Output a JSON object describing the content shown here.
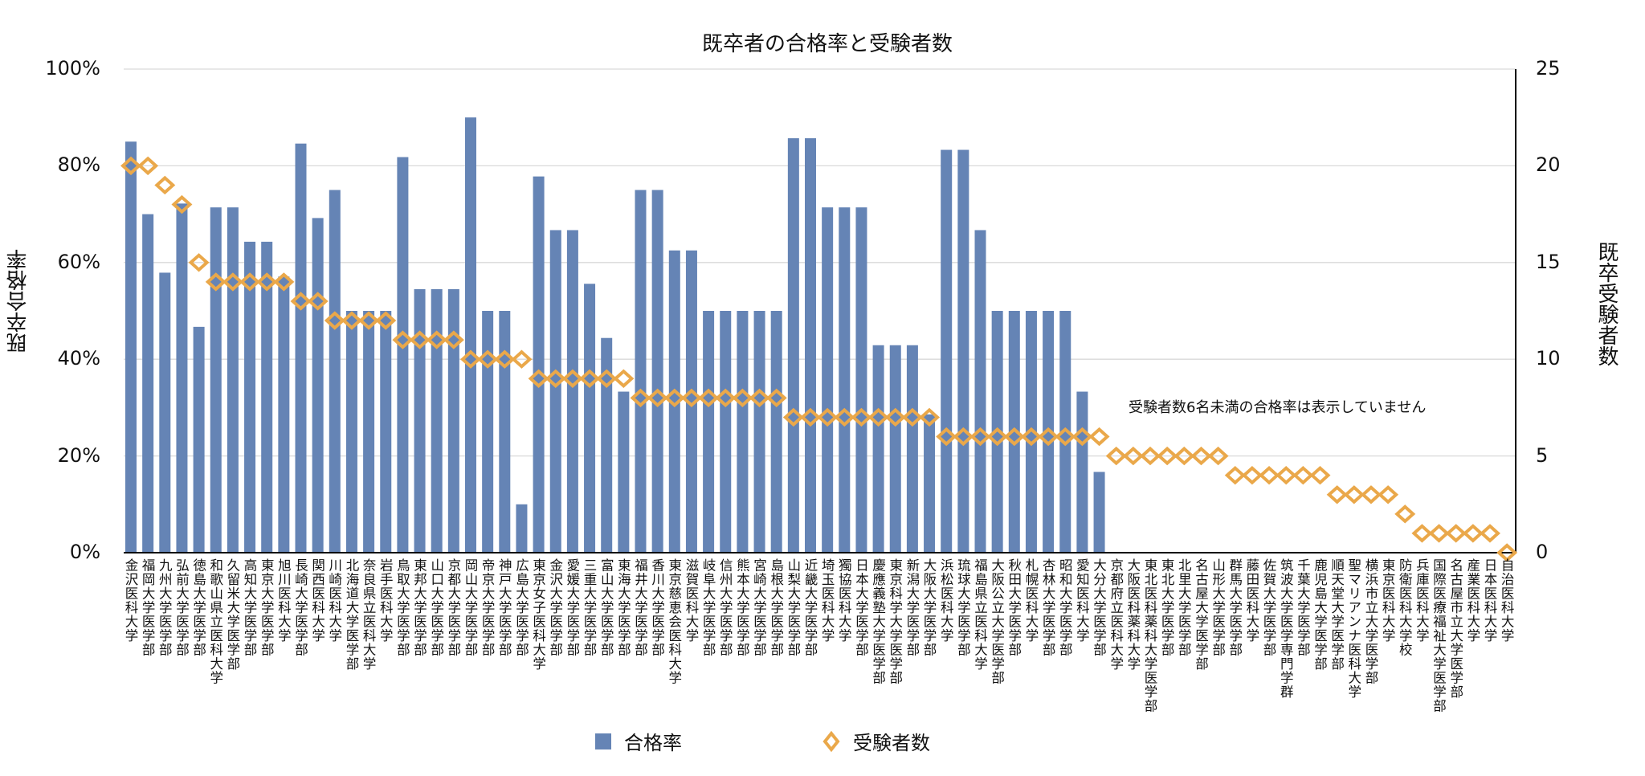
{
  "chart_data": {
    "type": "bar+scatter",
    "title": "既卒者の合格率と受験者数",
    "ylabel_left": "既卒合格率",
    "ylabel_right": "既卒受験者数",
    "ylim_left": [
      0,
      100
    ],
    "ylim_right": [
      0,
      25
    ],
    "yticks_left": [
      "0%",
      "20%",
      "40%",
      "60%",
      "80%",
      "100%"
    ],
    "yticks_right": [
      "0",
      "5",
      "10",
      "15",
      "20",
      "25"
    ],
    "grid": true,
    "legend_position": "bottom",
    "annotation": "受験者数6名未満の合格率は表示していません",
    "colors": {
      "bar": "#6584b5",
      "marker": "#eaa84a"
    },
    "categories": [
      "金沢医科大学",
      "福岡大学医学部",
      "九州大学医学部",
      "弘前大学医学部",
      "徳島大学医学部",
      "和歌山県立医科大学",
      "久留米大学医学部",
      "高知大学医学部",
      "東京大学医学部",
      "旭川医科大学",
      "長崎大学医学部",
      "関西医科大学",
      "川崎医科大学",
      "北海道大学医学部",
      "奈良県立医科大学",
      "岩手医科大学",
      "鳥取大学医学部",
      "東邦大学医学部",
      "山口大学医学部",
      "京都大学医学部",
      "岡山大学医学部",
      "帝京大学医学部",
      "神戸大学医学部",
      "広島大学医学部",
      "東京女子医科大学",
      "金沢大学医学部",
      "愛媛大学医学部",
      "三重大学医学部",
      "富山大学医学部",
      "東海大学医学部",
      "福井大学医学部",
      "香川大学医学部",
      "東京慈恵会医科大学",
      "滋賀医科大学",
      "岐阜大学医学部",
      "信州大学医学部",
      "熊本大学医学部",
      "宮崎大学医学部",
      "島根大学医学部",
      "山梨大学医学部",
      "近畿大学医学部",
      "埼玉医科大学",
      "獨協医科大学",
      "日本大学医学部",
      "慶應義塾大学医学部",
      "東京科学大学医学部",
      "新潟大学医学部",
      "大阪大学医学部",
      "浜松医科大学",
      "琉球大学医学部",
      "福島県立医科大学",
      "大阪公立大学医学部",
      "秋田大学医学部",
      "札幌医科大学",
      "杏林大学医学部",
      "昭和大学医学部",
      "愛知医科大学",
      "大分大学医学部",
      "京都府立医科大学",
      "大阪医科薬科大学",
      "東北医科薬科大学医学部",
      "東北大学医学部",
      "北里大学医学部",
      "名古屋大学医学部",
      "山形大学医学部",
      "群馬大学医学部",
      "藤田医科大学",
      "佐賀大学医学部",
      "筑波大学医学専門学群",
      "千葉大学医学部",
      "鹿児島大学医学部",
      "順天堂大学医学部",
      "聖マリアンナ医科大学",
      "横浜市立大学医学部",
      "東京医科大学",
      "防衛医科大学校",
      "兵庫医科大学",
      "国際医療福祉大学医学部",
      "名古屋市立大学医学部",
      "産業医科大学",
      "日本医科大学",
      "自治医科大学"
    ],
    "series": [
      {
        "name": "合格率",
        "type": "bar",
        "axis": "left",
        "values": [
          85,
          70,
          57.9,
          72.2,
          46.7,
          71.4,
          71.4,
          64.3,
          64.3,
          57.1,
          84.6,
          69.2,
          75,
          50,
          50,
          50,
          81.8,
          54.5,
          54.5,
          54.5,
          90,
          50,
          50,
          10,
          77.8,
          66.7,
          66.7,
          55.6,
          44.4,
          33.3,
          75,
          75,
          62.5,
          62.5,
          50,
          50,
          50,
          50,
          50,
          85.7,
          85.7,
          71.4,
          71.4,
          71.4,
          42.9,
          42.9,
          42.9,
          28.6,
          83.3,
          83.3,
          66.7,
          50,
          50,
          50,
          50,
          50,
          33.3,
          16.7,
          null,
          null,
          null,
          null,
          null,
          null,
          null,
          null,
          null,
          null,
          null,
          null,
          null,
          null,
          null,
          null,
          null,
          null,
          null,
          null,
          null,
          null,
          null,
          null
        ]
      },
      {
        "name": "受験者数",
        "type": "scatter",
        "axis": "right",
        "values": [
          20,
          20,
          19,
          18,
          15,
          14,
          14,
          14,
          14,
          14,
          13,
          13,
          12,
          12,
          12,
          12,
          11,
          11,
          11,
          11,
          10,
          10,
          10,
          10,
          9,
          9,
          9,
          9,
          9,
          9,
          8,
          8,
          8,
          8,
          8,
          8,
          8,
          8,
          8,
          7,
          7,
          7,
          7,
          7,
          7,
          7,
          7,
          7,
          6,
          6,
          6,
          6,
          6,
          6,
          6,
          6,
          6,
          6,
          5,
          5,
          5,
          5,
          5,
          5,
          5,
          4,
          4,
          4,
          4,
          4,
          4,
          3,
          3,
          3,
          3,
          2,
          1,
          1,
          1,
          1,
          1,
          0
        ]
      }
    ]
  }
}
